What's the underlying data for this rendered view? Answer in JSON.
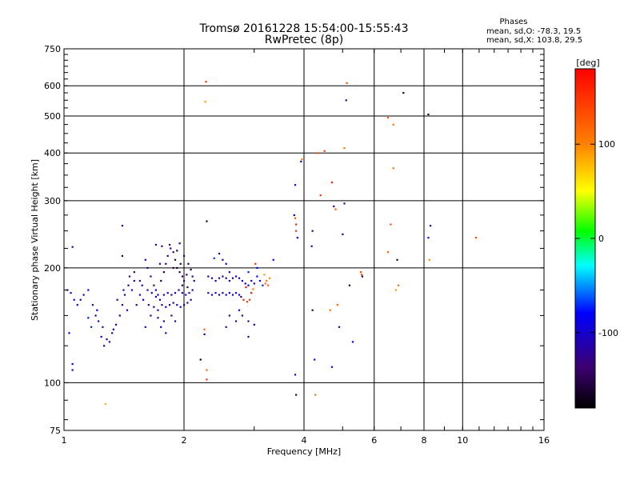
{
  "chart_data": {
    "type": "scatter",
    "title_line1": "Tromsø 20161228 15:54:00-15:55:43",
    "title_line2": "RwPretec (8p)",
    "xlabel": "Frequency [MHz]",
    "ylabel": "Stationary phase Virtual Height [km]",
    "x_scale": "log",
    "y_scale": "log",
    "xlim": [
      1,
      16
    ],
    "ylim": [
      75,
      750
    ],
    "x_ticks": [
      1,
      2,
      4,
      6,
      8,
      10,
      16
    ],
    "x_tick_labels": [
      "1",
      "2",
      "4",
      "6",
      "8",
      "10",
      "16"
    ],
    "y_ticks": [
      75,
      100,
      200,
      300,
      400,
      500,
      600,
      750
    ],
    "y_tick_labels": [
      "75",
      "100",
      "200",
      "300",
      "400",
      "500",
      "600",
      "750"
    ],
    "grid": true,
    "stats": {
      "header": "Phases",
      "line_O": "mean, sd,O: -78.3, 19.5",
      "line_X": "mean, sd,X: 103.8, 29.5"
    },
    "colorbar": {
      "unit_label": "[deg]",
      "ticks": [
        100,
        0,
        -100
      ],
      "tick_labels": [
        "100",
        "0",
        "-100"
      ],
      "range": [
        -180,
        180
      ]
    },
    "points": [
      [
        1.05,
        227,
        -120
      ],
      [
        1.02,
        175,
        -110
      ],
      [
        1.04,
        172,
        -90
      ],
      [
        1.06,
        165,
        -95
      ],
      [
        1.03,
        135,
        -80
      ],
      [
        1.08,
        160,
        -115
      ],
      [
        1.1,
        165,
        -105
      ],
      [
        1.12,
        170,
        -100
      ],
      [
        1.15,
        175,
        -85
      ],
      [
        1.18,
        160,
        -130
      ],
      [
        1.2,
        150,
        -120
      ],
      [
        1.22,
        145,
        -110
      ],
      [
        1.25,
        140,
        -125
      ],
      [
        1.28,
        130,
        -140
      ],
      [
        1.3,
        128,
        -120
      ],
      [
        1.32,
        135,
        -105
      ],
      [
        1.35,
        142,
        -115
      ],
      [
        1.38,
        150,
        -125
      ],
      [
        1.4,
        160,
        -130
      ],
      [
        1.42,
        170,
        -120
      ],
      [
        1.45,
        180,
        -110
      ],
      [
        1.48,
        175,
        -100
      ],
      [
        1.26,
        125,
        -90
      ],
      [
        1.24,
        132,
        -100
      ],
      [
        1.33,
        138,
        -135
      ],
      [
        1.21,
        155,
        -80
      ],
      [
        1.15,
        148,
        -75
      ],
      [
        1.36,
        165,
        -110
      ],
      [
        1.44,
        155,
        -120
      ],
      [
        1.5,
        185,
        -125
      ],
      [
        1.4,
        258,
        -120
      ],
      [
        1.4,
        215,
        -150
      ],
      [
        1.5,
        195,
        -140
      ],
      [
        1.55,
        185,
        -130
      ],
      [
        1.05,
        108,
        -95
      ],
      [
        1.05,
        112,
        -80
      ],
      [
        1.27,
        88,
        80
      ],
      [
        1.41,
        175,
        -90
      ],
      [
        1.46,
        190,
        -125
      ],
      [
        1.17,
        140,
        -70
      ],
      [
        1.6,
        210,
        -110
      ],
      [
        1.62,
        200,
        -130
      ],
      [
        1.65,
        190,
        -135
      ],
      [
        1.68,
        180,
        -140
      ],
      [
        1.7,
        175,
        -100
      ],
      [
        1.72,
        170,
        -90
      ],
      [
        1.75,
        185,
        -150
      ],
      [
        1.78,
        195,
        -160
      ],
      [
        1.8,
        205,
        -145
      ],
      [
        1.82,
        215,
        -130
      ],
      [
        1.85,
        225,
        -120
      ],
      [
        1.88,
        220,
        -140
      ],
      [
        1.9,
        210,
        -155
      ],
      [
        1.92,
        200,
        -160
      ],
      [
        1.95,
        195,
        -150
      ],
      [
        1.98,
        190,
        -145
      ],
      [
        2.0,
        185,
        -135
      ],
      [
        1.62,
        175,
        -110
      ],
      [
        1.66,
        172,
        -115
      ],
      [
        1.7,
        168,
        -105
      ],
      [
        1.74,
        165,
        -110
      ],
      [
        1.78,
        170,
        -120
      ],
      [
        1.82,
        172,
        -115
      ],
      [
        1.86,
        170,
        -110
      ],
      [
        1.9,
        172,
        -105
      ],
      [
        1.94,
        175,
        -115
      ],
      [
        1.98,
        172,
        -120
      ],
      [
        2.02,
        170,
        -110
      ],
      [
        2.06,
        172,
        -105
      ],
      [
        2.1,
        175,
        -100
      ],
      [
        1.58,
        165,
        -105
      ],
      [
        1.63,
        160,
        -120
      ],
      [
        1.68,
        158,
        -125
      ],
      [
        1.72,
        155,
        -110
      ],
      [
        1.76,
        160,
        -115
      ],
      [
        1.8,
        158,
        -100
      ],
      [
        1.84,
        160,
        -130
      ],
      [
        1.88,
        162,
        -125
      ],
      [
        1.92,
        160,
        -115
      ],
      [
        1.96,
        158,
        -110
      ],
      [
        2.0,
        160,
        -105
      ],
      [
        2.04,
        162,
        -120
      ],
      [
        1.65,
        150,
        -115
      ],
      [
        1.72,
        148,
        -120
      ],
      [
        1.78,
        145,
        -125
      ],
      [
        1.86,
        150,
        -130
      ],
      [
        1.6,
        140,
        -110
      ],
      [
        1.75,
        140,
        -115
      ],
      [
        1.9,
        145,
        -120
      ],
      [
        1.8,
        135,
        -110
      ],
      [
        1.7,
        230,
        -120
      ],
      [
        1.76,
        228,
        -125
      ],
      [
        1.84,
        230,
        -140
      ],
      [
        1.92,
        222,
        -150
      ],
      [
        2.0,
        215,
        -145
      ],
      [
        2.05,
        205,
        -155
      ],
      [
        2.08,
        198,
        -150
      ],
      [
        1.96,
        205,
        -160
      ],
      [
        1.88,
        200,
        -145
      ],
      [
        1.74,
        205,
        -130
      ],
      [
        2.1,
        190,
        -140
      ],
      [
        2.12,
        185,
        -120
      ],
      [
        2.03,
        192,
        -150
      ],
      [
        1.55,
        170,
        -115
      ],
      [
        1.57,
        180,
        -120
      ],
      [
        1.95,
        232,
        -110
      ],
      [
        1.98,
        180,
        -150
      ],
      [
        2.04,
        178,
        -140
      ],
      [
        2.08,
        165,
        -110
      ],
      [
        1.52,
        160,
        -125
      ],
      [
        2.3,
        190,
        -110
      ],
      [
        2.35,
        188,
        -115
      ],
      [
        2.4,
        185,
        -105
      ],
      [
        2.45,
        188,
        -110
      ],
      [
        2.5,
        190,
        -120
      ],
      [
        2.55,
        188,
        -115
      ],
      [
        2.6,
        185,
        -110
      ],
      [
        2.65,
        188,
        -100
      ],
      [
        2.7,
        190,
        -115
      ],
      [
        2.75,
        188,
        -110
      ],
      [
        2.3,
        172,
        -100
      ],
      [
        2.35,
        170,
        -95
      ],
      [
        2.4,
        172,
        -100
      ],
      [
        2.45,
        170,
        -105
      ],
      [
        2.5,
        172,
        -100
      ],
      [
        2.55,
        170,
        -95
      ],
      [
        2.6,
        172,
        -100
      ],
      [
        2.65,
        170,
        -105
      ],
      [
        2.7,
        172,
        -95
      ],
      [
        2.75,
        170,
        -100
      ],
      [
        2.45,
        218,
        -110
      ],
      [
        2.5,
        210,
        -120
      ],
      [
        2.38,
        212,
        -70
      ],
      [
        2.55,
        205,
        -90
      ],
      [
        2.6,
        195,
        -115
      ],
      [
        2.8,
        185,
        -90
      ],
      [
        2.85,
        182,
        -100
      ],
      [
        2.9,
        180,
        -80
      ],
      [
        2.95,
        185,
        -95
      ],
      [
        3.0,
        182,
        -90
      ],
      [
        3.05,
        190,
        -85
      ],
      [
        3.1,
        185,
        -80
      ],
      [
        3.15,
        180,
        -75
      ],
      [
        3.2,
        182,
        110
      ],
      [
        3.25,
        180,
        120
      ],
      [
        2.78,
        168,
        -140
      ],
      [
        2.82,
        165,
        160
      ],
      [
        2.88,
        163,
        150
      ],
      [
        2.92,
        165,
        140
      ],
      [
        2.86,
        178,
        170
      ],
      [
        2.95,
        172,
        170
      ],
      [
        2.98,
        176,
        100
      ],
      [
        2.9,
        195,
        -75
      ],
      [
        3.05,
        200,
        -85
      ],
      [
        3.18,
        192,
        90
      ],
      [
        3.22,
        185,
        110
      ],
      [
        3.35,
        210,
        -90
      ],
      [
        3.28,
        188,
        100
      ],
      [
        3.02,
        205,
        150
      ],
      [
        2.8,
        150,
        -140
      ],
      [
        2.7,
        145,
        -120
      ],
      [
        2.6,
        150,
        -130
      ],
      [
        2.9,
        145,
        -125
      ],
      [
        2.75,
        155,
        -110
      ],
      [
        3.0,
        142,
        -115
      ],
      [
        2.9,
        132,
        -120
      ],
      [
        2.55,
        140,
        -130
      ],
      [
        2.25,
        134,
        -110
      ],
      [
        2.2,
        115,
        -175
      ],
      [
        2.25,
        138,
        120
      ],
      [
        2.28,
        265,
        -160
      ],
      [
        2.27,
        615,
        150
      ],
      [
        2.26,
        545,
        90
      ],
      [
        2.28,
        102,
        150
      ],
      [
        2.28,
        108,
        120
      ],
      [
        3.8,
        330,
        -90
      ],
      [
        3.78,
        275,
        -100
      ],
      [
        3.8,
        270,
        120
      ],
      [
        3.82,
        260,
        160
      ],
      [
        3.82,
        250,
        150
      ],
      [
        3.85,
        240,
        -80
      ],
      [
        3.8,
        105,
        -100
      ],
      [
        3.82,
        93,
        -150
      ],
      [
        3.95,
        385,
        110
      ],
      [
        3.93,
        380,
        -100
      ],
      [
        4.18,
        228,
        -120
      ],
      [
        4.2,
        250,
        -140
      ],
      [
        4.2,
        155,
        -150
      ],
      [
        4.35,
        400,
        130
      ],
      [
        4.4,
        310,
        150
      ],
      [
        4.25,
        115,
        -110
      ],
      [
        4.27,
        93,
        110
      ],
      [
        4.5,
        405,
        140
      ],
      [
        4.65,
        155,
        110
      ],
      [
        4.7,
        335,
        170
      ],
      [
        4.75,
        290,
        -130
      ],
      [
        4.8,
        285,
        120
      ],
      [
        4.7,
        110,
        -95
      ],
      [
        4.9,
        140,
        -130
      ],
      [
        4.85,
        160,
        120
      ],
      [
        5.05,
        412,
        110
      ],
      [
        5.05,
        295,
        -130
      ],
      [
        5.0,
        245,
        -120
      ],
      [
        5.1,
        550,
        -140
      ],
      [
        5.12,
        610,
        130
      ],
      [
        5.2,
        180,
        -160
      ],
      [
        5.3,
        128,
        -80
      ],
      [
        5.6,
        190,
        -150
      ],
      [
        5.55,
        195,
        140
      ],
      [
        5.58,
        192,
        130
      ],
      [
        6.5,
        495,
        130
      ],
      [
        6.7,
        475,
        110
      ],
      [
        6.6,
        260,
        130
      ],
      [
        6.5,
        220,
        120
      ],
      [
        6.7,
        365,
        110
      ],
      [
        6.85,
        210,
        -160
      ],
      [
        6.9,
        180,
        110
      ],
      [
        7.1,
        575,
        -160
      ],
      [
        6.8,
        175,
        90
      ],
      [
        8.2,
        505,
        -160
      ],
      [
        8.3,
        258,
        -110
      ],
      [
        8.2,
        240,
        -95
      ],
      [
        8.25,
        210,
        100
      ],
      [
        10.8,
        240,
        140
      ]
    ]
  }
}
